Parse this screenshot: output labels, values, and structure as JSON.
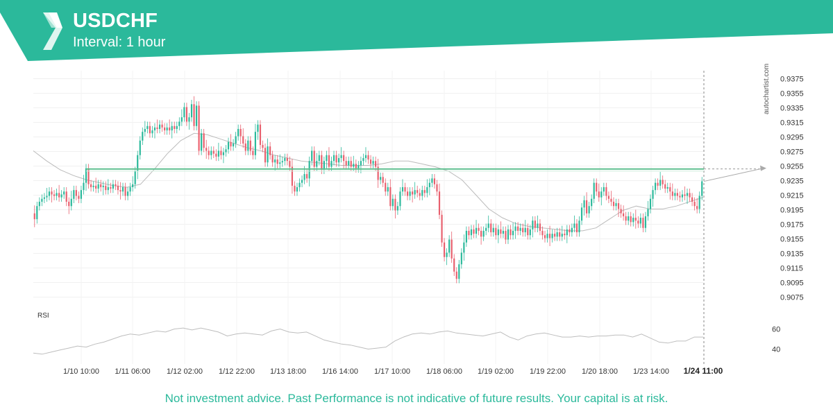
{
  "header": {
    "title": "USDCHF",
    "subtitle": "Interval: 1 hour",
    "brand_color": "#2bb99b",
    "logo_icon": "autochartist-logo-icon"
  },
  "watermark": "autochartist.com",
  "footer": {
    "disclaimer": "Not investment advice. Past Performance is not indicative of future results. Your capital is at risk.",
    "color": "#2bb99b"
  },
  "chart_data": {
    "type": "candlestick",
    "symbol": "USDCHF",
    "interval": "1 hour",
    "colors": {
      "up": "#2bb99b",
      "down": "#e8606e",
      "level": "#5fbf8f",
      "ma": "#bbbbbb"
    },
    "y_axis": {
      "min": 0.9064,
      "max": 0.9386,
      "ticks": [
        "0.9375",
        "0.9355",
        "0.9335",
        "0.9315",
        "0.9295",
        "0.9275",
        "0.9255",
        "0.9235",
        "0.9215",
        "0.9195",
        "0.9175",
        "0.9155",
        "0.9135",
        "0.9115",
        "0.9095",
        "0.9075"
      ]
    },
    "x_axis": {
      "ticks": [
        "1/10 10:00",
        "1/11 06:00",
        "1/12 02:00",
        "1/12 22:00",
        "1/13 18:00",
        "1/16 14:00",
        "1/17 10:00",
        "1/18 06:00",
        "1/19 02:00",
        "1/19 22:00",
        "1/20 18:00",
        "1/23 14:00"
      ],
      "current_label": "1/24 11:00"
    },
    "level": {
      "value": 0.9251,
      "start_candle": 21
    },
    "projection": {
      "target": 0.9252
    },
    "grid": true,
    "candles": [
      [
        0.919,
        0.9182
      ],
      [
        0.9182,
        0.92
      ],
      [
        0.92,
        0.9206
      ],
      [
        0.9206,
        0.921
      ],
      [
        0.921,
        0.9212
      ],
      [
        0.9212,
        0.9214
      ],
      [
        0.9214,
        0.922
      ],
      [
        0.922,
        0.9216
      ],
      [
        0.9216,
        0.9214
      ],
      [
        0.9214,
        0.9218
      ],
      [
        0.9218,
        0.9212
      ],
      [
        0.9212,
        0.9216
      ],
      [
        0.9216,
        0.922
      ],
      [
        0.922,
        0.9206
      ],
      [
        0.9206,
        0.92
      ],
      [
        0.92,
        0.921
      ],
      [
        0.921,
        0.9222
      ],
      [
        0.9222,
        0.9214
      ],
      [
        0.9214,
        0.921
      ],
      [
        0.921,
        0.9222
      ],
      [
        0.9222,
        0.9232
      ],
      [
        0.9232,
        0.9252
      ],
      [
        0.9252,
        0.923
      ],
      [
        0.923,
        0.9226
      ],
      [
        0.9226,
        0.9228
      ],
      [
        0.9228,
        0.9224
      ],
      [
        0.9224,
        0.923
      ],
      [
        0.923,
        0.9226
      ],
      [
        0.9226,
        0.9228
      ],
      [
        0.9228,
        0.9222
      ],
      [
        0.9222,
        0.9226
      ],
      [
        0.9226,
        0.9224
      ],
      [
        0.9224,
        0.923
      ],
      [
        0.923,
        0.9228
      ],
      [
        0.9228,
        0.9222
      ],
      [
        0.9222,
        0.922
      ],
      [
        0.922,
        0.9226
      ],
      [
        0.9226,
        0.9214
      ],
      [
        0.9214,
        0.922
      ],
      [
        0.922,
        0.9226
      ],
      [
        0.9226,
        0.923
      ],
      [
        0.923,
        0.9248
      ],
      [
        0.9248,
        0.927
      ],
      [
        0.927,
        0.929
      ],
      [
        0.929,
        0.9302
      ],
      [
        0.9302,
        0.9306
      ],
      [
        0.9306,
        0.931
      ],
      [
        0.931,
        0.93
      ],
      [
        0.93,
        0.9304
      ],
      [
        0.9304,
        0.9308
      ],
      [
        0.9308,
        0.9306
      ],
      [
        0.9306,
        0.9312
      ],
      [
        0.9312,
        0.9308
      ],
      [
        0.9308,
        0.9304
      ],
      [
        0.9304,
        0.9308
      ],
      [
        0.9308,
        0.9304
      ],
      [
        0.9304,
        0.931
      ],
      [
        0.931,
        0.9306
      ],
      [
        0.9306,
        0.931
      ],
      [
        0.931,
        0.9316
      ],
      [
        0.9316,
        0.9322
      ],
      [
        0.9322,
        0.9336
      ],
      [
        0.9336,
        0.9316
      ],
      [
        0.9316,
        0.9322
      ],
      [
        0.9322,
        0.934
      ],
      [
        0.934,
        0.931
      ],
      [
        0.931,
        0.9338
      ],
      [
        0.9338,
        0.9276
      ],
      [
        0.9276,
        0.93
      ],
      [
        0.93,
        0.928
      ],
      [
        0.928,
        0.9276
      ],
      [
        0.9276,
        0.927
      ],
      [
        0.927,
        0.9276
      ],
      [
        0.9276,
        0.9272
      ],
      [
        0.9272,
        0.9268
      ],
      [
        0.9268,
        0.9276
      ],
      [
        0.9276,
        0.927
      ],
      [
        0.927,
        0.9274
      ],
      [
        0.9274,
        0.9278
      ],
      [
        0.9278,
        0.9288
      ],
      [
        0.9288,
        0.9282
      ],
      [
        0.9282,
        0.9286
      ],
      [
        0.9286,
        0.9296
      ],
      [
        0.9296,
        0.9306
      ],
      [
        0.9306,
        0.9296
      ],
      [
        0.9296,
        0.9286
      ],
      [
        0.9286,
        0.9276
      ],
      [
        0.9276,
        0.929
      ],
      [
        0.929,
        0.9276
      ],
      [
        0.9276,
        0.927
      ],
      [
        0.927,
        0.9302
      ],
      [
        0.9302,
        0.9312
      ],
      [
        0.9312,
        0.9284
      ],
      [
        0.9284,
        0.928
      ],
      [
        0.928,
        0.926
      ],
      [
        0.926,
        0.9282
      ],
      [
        0.9282,
        0.927
      ],
      [
        0.927,
        0.926
      ],
      [
        0.926,
        0.9264
      ],
      [
        0.9264,
        0.9258
      ],
      [
        0.9258,
        0.926
      ],
      [
        0.926,
        0.9262
      ],
      [
        0.9262,
        0.9266
      ],
      [
        0.9266,
        0.9262
      ],
      [
        0.9262,
        0.9254
      ],
      [
        0.9254,
        0.9228
      ],
      [
        0.9228,
        0.922
      ],
      [
        0.922,
        0.9226
      ],
      [
        0.9226,
        0.9232
      ],
      [
        0.9232,
        0.9236
      ],
      [
        0.9236,
        0.9244
      ],
      [
        0.9244,
        0.9238
      ],
      [
        0.9238,
        0.9262
      ],
      [
        0.9262,
        0.9276
      ],
      [
        0.9276,
        0.9254
      ],
      [
        0.9254,
        0.9262
      ],
      [
        0.9262,
        0.927
      ],
      [
        0.927,
        0.925
      ],
      [
        0.925,
        0.9262
      ],
      [
        0.9262,
        0.927
      ],
      [
        0.927,
        0.9254
      ],
      [
        0.9254,
        0.9262
      ],
      [
        0.9262,
        0.927
      ],
      [
        0.927,
        0.926
      ],
      [
        0.926,
        0.9266
      ],
      [
        0.9266,
        0.927
      ],
      [
        0.927,
        0.9262
      ],
      [
        0.9262,
        0.9256
      ],
      [
        0.9256,
        0.9262
      ],
      [
        0.9262,
        0.9254
      ],
      [
        0.9254,
        0.9258
      ],
      [
        0.9258,
        0.9252
      ],
      [
        0.9252,
        0.9256
      ],
      [
        0.9256,
        0.9262
      ],
      [
        0.9262,
        0.9266
      ],
      [
        0.9266,
        0.927
      ],
      [
        0.927,
        0.9264
      ],
      [
        0.9264,
        0.9258
      ],
      [
        0.9258,
        0.9262
      ],
      [
        0.9262,
        0.9254
      ],
      [
        0.9254,
        0.9236
      ],
      [
        0.9236,
        0.924
      ],
      [
        0.924,
        0.9232
      ],
      [
        0.9232,
        0.922
      ],
      [
        0.922,
        0.9226
      ],
      [
        0.9226,
        0.92
      ],
      [
        0.92,
        0.921
      ],
      [
        0.921,
        0.9194
      ],
      [
        0.9194,
        0.92
      ],
      [
        0.92,
        0.922
      ],
      [
        0.922,
        0.9226
      ],
      [
        0.9226,
        0.922
      ],
      [
        0.922,
        0.9214
      ],
      [
        0.9214,
        0.922
      ],
      [
        0.922,
        0.9216
      ],
      [
        0.9216,
        0.9222
      ],
      [
        0.9222,
        0.9218
      ],
      [
        0.9218,
        0.9214
      ],
      [
        0.9214,
        0.9222
      ],
      [
        0.9222,
        0.9218
      ],
      [
        0.9218,
        0.9226
      ],
      [
        0.9226,
        0.9232
      ],
      [
        0.9232,
        0.9238
      ],
      [
        0.9238,
        0.923
      ],
      [
        0.923,
        0.922
      ],
      [
        0.922,
        0.9188
      ],
      [
        0.9188,
        0.915
      ],
      [
        0.915,
        0.913
      ],
      [
        0.913,
        0.9136
      ],
      [
        0.9136,
        0.9154
      ],
      [
        0.9154,
        0.9128
      ],
      [
        0.9128,
        0.911
      ],
      [
        0.911,
        0.91
      ],
      [
        0.91,
        0.912
      ],
      [
        0.912,
        0.9136
      ],
      [
        0.9136,
        0.915
      ],
      [
        0.915,
        0.9166
      ],
      [
        0.9166,
        0.916
      ],
      [
        0.916,
        0.9168
      ],
      [
        0.9168,
        0.9162
      ],
      [
        0.9162,
        0.917
      ],
      [
        0.917,
        0.9166
      ],
      [
        0.9166,
        0.9158
      ],
      [
        0.9158,
        0.9166
      ],
      [
        0.9166,
        0.917
      ],
      [
        0.917,
        0.9176
      ],
      [
        0.9176,
        0.9164
      ],
      [
        0.9164,
        0.917
      ],
      [
        0.917,
        0.916
      ],
      [
        0.916,
        0.9168
      ],
      [
        0.9168,
        0.9162
      ],
      [
        0.9162,
        0.9166
      ],
      [
        0.9166,
        0.9154
      ],
      [
        0.9154,
        0.9168
      ],
      [
        0.9168,
        0.916
      ],
      [
        0.916,
        0.9166
      ],
      [
        0.9166,
        0.9172
      ],
      [
        0.9172,
        0.9166
      ],
      [
        0.9166,
        0.917
      ],
      [
        0.917,
        0.9164
      ],
      [
        0.9164,
        0.917
      ],
      [
        0.917,
        0.916
      ],
      [
        0.916,
        0.9168
      ],
      [
        0.9168,
        0.918
      ],
      [
        0.918,
        0.917
      ],
      [
        0.917,
        0.9176
      ],
      [
        0.9176,
        0.9166
      ],
      [
        0.9166,
        0.916
      ],
      [
        0.916,
        0.9156
      ],
      [
        0.9156,
        0.9162
      ],
      [
        0.9162,
        0.9156
      ],
      [
        0.9156,
        0.9162
      ],
      [
        0.9162,
        0.9158
      ],
      [
        0.9158,
        0.9164
      ],
      [
        0.9164,
        0.9158
      ],
      [
        0.9158,
        0.9162
      ],
      [
        0.9162,
        0.916
      ],
      [
        0.916,
        0.9168
      ],
      [
        0.9168,
        0.9164
      ],
      [
        0.9164,
        0.917
      ],
      [
        0.917,
        0.9176
      ],
      [
        0.9176,
        0.9164
      ],
      [
        0.9164,
        0.918
      ],
      [
        0.918,
        0.9198
      ],
      [
        0.9198,
        0.9208
      ],
      [
        0.9208,
        0.919
      ],
      [
        0.919,
        0.92
      ],
      [
        0.92,
        0.921
      ],
      [
        0.921,
        0.9232
      ],
      [
        0.9232,
        0.922
      ],
      [
        0.922,
        0.9212
      ],
      [
        0.9212,
        0.922
      ],
      [
        0.922,
        0.9226
      ],
      [
        0.9226,
        0.9214
      ],
      [
        0.9214,
        0.921
      ],
      [
        0.921,
        0.9206
      ],
      [
        0.9206,
        0.92
      ],
      [
        0.92,
        0.9204
      ],
      [
        0.9204,
        0.9196
      ],
      [
        0.9196,
        0.919
      ],
      [
        0.919,
        0.9186
      ],
      [
        0.9186,
        0.918
      ],
      [
        0.918,
        0.9186
      ],
      [
        0.9186,
        0.9178
      ],
      [
        0.9178,
        0.9184
      ],
      [
        0.9184,
        0.918
      ],
      [
        0.918,
        0.9176
      ],
      [
        0.9176,
        0.9184
      ],
      [
        0.9184,
        0.917
      ],
      [
        0.917,
        0.9186
      ],
      [
        0.9186,
        0.9196
      ],
      [
        0.9196,
        0.921
      ],
      [
        0.921,
        0.9222
      ],
      [
        0.9222,
        0.9232
      ],
      [
        0.9232,
        0.9228
      ],
      [
        0.9228,
        0.9236
      ],
      [
        0.9236,
        0.923
      ],
      [
        0.923,
        0.9224
      ],
      [
        0.9224,
        0.9226
      ],
      [
        0.9226,
        0.922
      ],
      [
        0.922,
        0.9214
      ],
      [
        0.9214,
        0.9218
      ],
      [
        0.9218,
        0.9214
      ],
      [
        0.9214,
        0.9212
      ],
      [
        0.9212,
        0.9216
      ],
      [
        0.9216,
        0.9214
      ],
      [
        0.9214,
        0.9218
      ],
      [
        0.9218,
        0.9212
      ],
      [
        0.9212,
        0.9206
      ],
      [
        0.9206,
        0.92
      ],
      [
        0.92,
        0.9196
      ],
      [
        0.9196,
        0.9214
      ],
      [
        0.9214,
        0.9234
      ]
    ],
    "ma": [
      0.9276,
      0.9262,
      0.925,
      0.9242,
      0.9236,
      0.9232,
      0.9228,
      0.9226,
      0.923,
      0.925,
      0.9272,
      0.929,
      0.93,
      0.9298,
      0.9292,
      0.9286,
      0.928,
      0.9276,
      0.927,
      0.9266,
      0.9262,
      0.926,
      0.9258,
      0.9256,
      0.9256,
      0.9256,
      0.9258,
      0.9262,
      0.9262,
      0.9258,
      0.9254,
      0.9248,
      0.9236,
      0.9216,
      0.9196,
      0.9184,
      0.9176,
      0.9172,
      0.917,
      0.9168,
      0.9166,
      0.9166,
      0.917,
      0.9182,
      0.9194,
      0.92,
      0.9196,
      0.9196,
      0.92,
      0.9206,
      0.9212
    ],
    "rsi": {
      "label": "RSI",
      "min": 30,
      "max": 70,
      "ticks": [
        "60",
        "40"
      ],
      "values": [
        36,
        35,
        37,
        39,
        41,
        43,
        42,
        45,
        47,
        50,
        53,
        55,
        54,
        56,
        58,
        57,
        60,
        61,
        59,
        61,
        59,
        57,
        53,
        55,
        56,
        55,
        54,
        58,
        60,
        57,
        56,
        57,
        53,
        49,
        47,
        45,
        44,
        42,
        40,
        41,
        42,
        48,
        52,
        55,
        56,
        55,
        57,
        58,
        56,
        55,
        54,
        53,
        55,
        57,
        52,
        49,
        53,
        55,
        56,
        54,
        52,
        52,
        53,
        52,
        53,
        53,
        54,
        54,
        52,
        55,
        51,
        47,
        46,
        48,
        48,
        52,
        52
      ]
    }
  }
}
